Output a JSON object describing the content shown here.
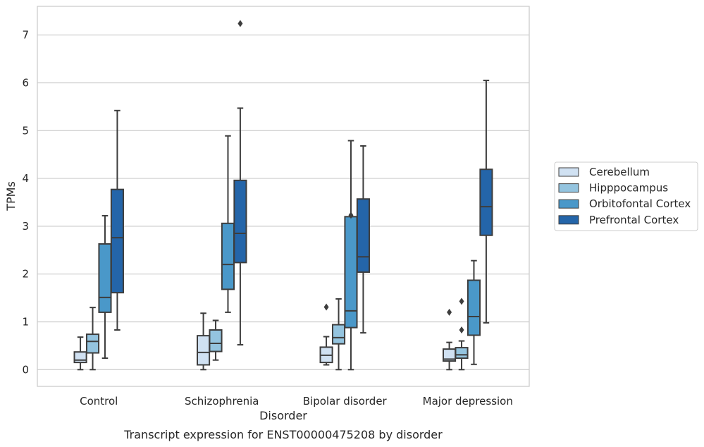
{
  "chart_data": {
    "type": "box",
    "title": "Transcript expression for ENST00000475208 by disorder",
    "xlabel": "Disorder",
    "ylabel": "TPMs",
    "ylim": [
      -0.35,
      7.6
    ],
    "yticks": [
      0,
      1,
      2,
      3,
      4,
      5,
      6,
      7
    ],
    "grid": true,
    "legend_position": "right",
    "categories": [
      "Control",
      "Schizophrenia",
      "Bipolar disorder",
      "Major depression"
    ],
    "series": [
      {
        "name": "Cerebellum",
        "color": "#d0e1f2",
        "boxes": [
          {
            "whislo": 0.0,
            "q1": 0.15,
            "med": 0.2,
            "q3": 0.37,
            "whishi": 0.68,
            "fliers": []
          },
          {
            "whislo": 0.0,
            "q1": 0.1,
            "med": 0.36,
            "q3": 0.71,
            "whishi": 1.18,
            "fliers": []
          },
          {
            "whislo": 0.1,
            "q1": 0.15,
            "med": 0.3,
            "q3": 0.47,
            "whishi": 0.69,
            "fliers": [
              1.31
            ]
          },
          {
            "whislo": 0.0,
            "q1": 0.18,
            "med": 0.22,
            "q3": 0.43,
            "whishi": 0.57,
            "fliers": [
              1.2
            ]
          }
        ]
      },
      {
        "name": "Hipppocampus",
        "color": "#94c4df",
        "boxes": [
          {
            "whislo": 0.0,
            "q1": 0.35,
            "med": 0.59,
            "q3": 0.74,
            "whishi": 1.3,
            "fliers": []
          },
          {
            "whislo": 0.2,
            "q1": 0.38,
            "med": 0.55,
            "q3": 0.83,
            "whishi": 1.03,
            "fliers": []
          },
          {
            "whislo": 0.0,
            "q1": 0.54,
            "med": 0.67,
            "q3": 0.94,
            "whishi": 1.48,
            "fliers": []
          },
          {
            "whislo": 0.0,
            "q1": 0.24,
            "med": 0.31,
            "q3": 0.46,
            "whishi": 0.6,
            "fliers": [
              1.43,
              0.83
            ]
          }
        ]
      },
      {
        "name": "Orbitofontal Cortex",
        "color": "#4a98c9",
        "boxes": [
          {
            "whislo": 0.24,
            "q1": 1.2,
            "med": 1.51,
            "q3": 2.63,
            "whishi": 3.22,
            "fliers": []
          },
          {
            "whislo": 1.2,
            "q1": 1.68,
            "med": 2.2,
            "q3": 3.06,
            "whishi": 4.89,
            "fliers": []
          },
          {
            "whislo": 0.0,
            "q1": 0.88,
            "med": 1.23,
            "q3": 3.2,
            "whishi": 4.79,
            "fliers": [
              3.23
            ]
          },
          {
            "whislo": 0.11,
            "q1": 0.72,
            "med": 1.11,
            "q3": 1.87,
            "whishi": 2.28,
            "fliers": []
          }
        ]
      },
      {
        "name": "Prefrontal Cortex",
        "color": "#2465a9",
        "boxes": [
          {
            "whislo": 0.83,
            "q1": 1.61,
            "med": 2.76,
            "q3": 3.77,
            "whishi": 5.42,
            "fliers": []
          },
          {
            "whislo": 0.52,
            "q1": 2.24,
            "med": 2.85,
            "q3": 3.96,
            "whishi": 5.47,
            "fliers": [
              7.24
            ]
          },
          {
            "whislo": 0.77,
            "q1": 2.04,
            "med": 2.36,
            "q3": 3.57,
            "whishi": 4.68,
            "fliers": []
          },
          {
            "whislo": 0.98,
            "q1": 2.81,
            "med": 3.41,
            "q3": 4.19,
            "whishi": 6.05,
            "fliers": []
          }
        ]
      }
    ]
  }
}
